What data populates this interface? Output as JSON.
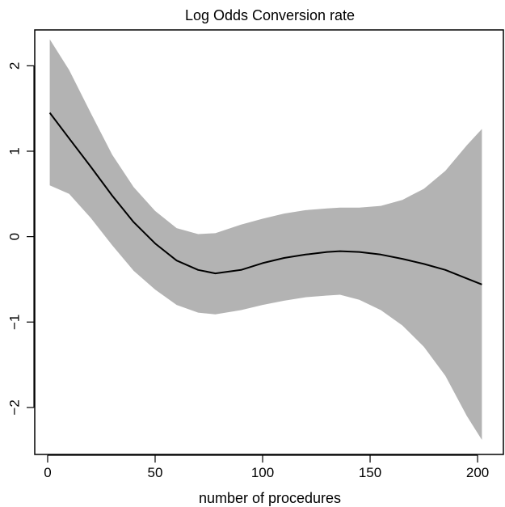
{
  "chart_data": {
    "type": "line",
    "title": "Log Odds Conversion rate",
    "xlabel": "number of procedures",
    "ylabel": "",
    "xlim": [
      -6,
      212
    ],
    "ylim": [
      -2.55,
      2.42
    ],
    "xticks": [
      0,
      50,
      100,
      150,
      200
    ],
    "yticks": [
      -2,
      -1,
      0,
      1,
      2
    ],
    "grid": false,
    "legend": "none",
    "colors": {
      "line": "#000000",
      "band": "#b3b3b3",
      "frame": "#000000"
    },
    "series": [
      {
        "x": [
          1,
          10,
          20,
          30,
          40,
          50,
          60,
          70,
          78,
          90,
          100,
          110,
          120,
          130,
          136,
          145,
          155,
          165,
          175,
          185,
          195,
          202
        ],
        "y": [
          1.45,
          1.15,
          0.82,
          0.48,
          0.17,
          -0.08,
          -0.28,
          -0.39,
          -0.43,
          -0.39,
          -0.31,
          -0.25,
          -0.21,
          -0.18,
          -0.17,
          -0.18,
          -0.21,
          -0.26,
          -0.32,
          -0.39,
          -0.49,
          -0.56
        ]
      }
    ],
    "band": {
      "x": [
        1,
        10,
        20,
        30,
        40,
        50,
        60,
        70,
        78,
        90,
        100,
        110,
        120,
        130,
        136,
        145,
        155,
        165,
        175,
        185,
        195,
        202
      ],
      "upper": [
        2.31,
        1.95,
        1.45,
        0.96,
        0.58,
        0.3,
        0.1,
        0.03,
        0.04,
        0.14,
        0.21,
        0.27,
        0.31,
        0.33,
        0.34,
        0.34,
        0.36,
        0.43,
        0.56,
        0.77,
        1.07,
        1.26
      ],
      "lower": [
        0.6,
        0.5,
        0.22,
        -0.1,
        -0.4,
        -0.62,
        -0.8,
        -0.89,
        -0.91,
        -0.86,
        -0.8,
        -0.75,
        -0.71,
        -0.69,
        -0.68,
        -0.74,
        -0.86,
        -1.04,
        -1.29,
        -1.63,
        -2.1,
        -2.38
      ]
    }
  }
}
